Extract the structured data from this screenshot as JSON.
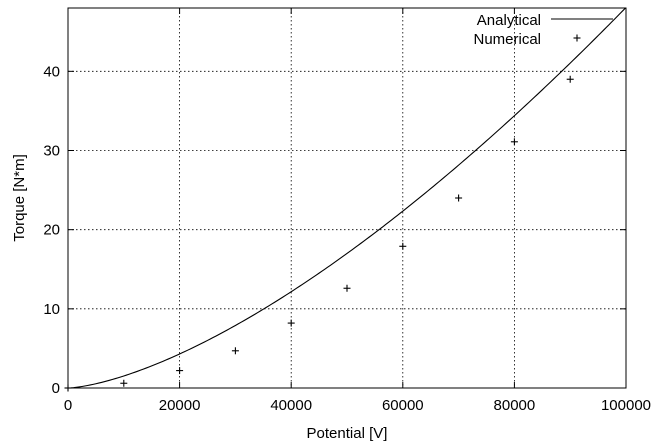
{
  "chart_data": {
    "type": "line",
    "xlabel": "Potential [V]",
    "ylabel": "Torque [N*m]",
    "xlim": [
      0,
      100000
    ],
    "ylim": [
      0,
      48
    ],
    "x_ticks": [
      0,
      20000,
      40000,
      60000,
      80000,
      100000
    ],
    "x_tick_labels": [
      "0",
      "20000",
      "40000",
      "60000",
      "80000",
      "100000"
    ],
    "y_ticks": [
      0,
      10,
      20,
      30,
      40
    ],
    "y_tick_labels": [
      "0",
      "10",
      "20",
      "30",
      "40"
    ],
    "grid": true,
    "legend_position": "top-right",
    "series": [
      {
        "name": "Analytical",
        "style": "line",
        "model": "y = k * x^1.5",
        "k": 1.52e-06,
        "x_range": [
          0,
          100000
        ]
      },
      {
        "name": "Numerical",
        "style": "plus-markers",
        "x": [
          0,
          10000,
          20000,
          30000,
          40000,
          50000,
          60000,
          70000,
          80000,
          90000
        ],
        "y": [
          0,
          0.6,
          2.2,
          4.7,
          8.2,
          12.6,
          17.9,
          24.0,
          31.1,
          39.0
        ]
      }
    ]
  }
}
